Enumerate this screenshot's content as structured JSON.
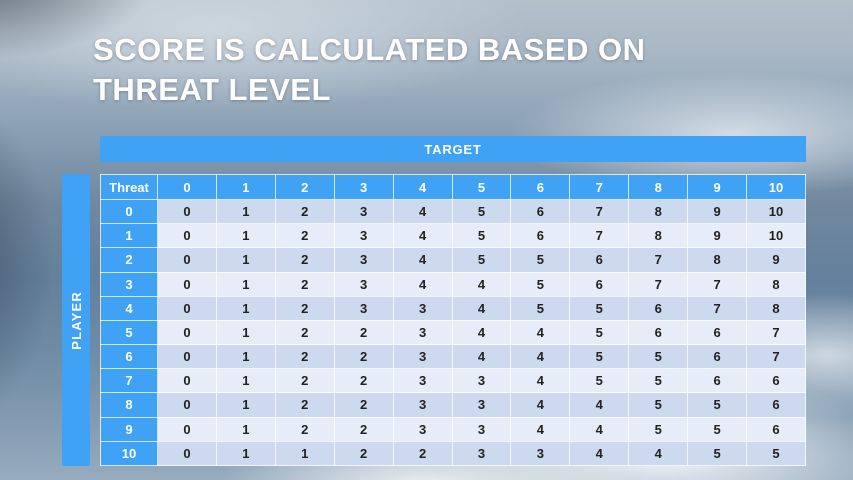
{
  "slide": {
    "title_line1": "SCORE IS CALCULATED BASED ON",
    "title_line2": "THREAT LEVEL"
  },
  "table": {
    "target_label": "TARGET",
    "player_label": "PLAYER",
    "corner_label": "Threat",
    "column_headers": [
      "0",
      "1",
      "2",
      "3",
      "4",
      "5",
      "6",
      "7",
      "8",
      "9",
      "10"
    ],
    "rows": [
      {
        "threat": "0",
        "values": [
          "0",
          "1",
          "2",
          "3",
          "4",
          "5",
          "6",
          "7",
          "8",
          "9",
          "10"
        ]
      },
      {
        "threat": "1",
        "values": [
          "0",
          "1",
          "2",
          "3",
          "4",
          "5",
          "6",
          "7",
          "8",
          "9",
          "10"
        ]
      },
      {
        "threat": "2",
        "values": [
          "0",
          "1",
          "2",
          "3",
          "4",
          "5",
          "5",
          "6",
          "7",
          "8",
          "9"
        ]
      },
      {
        "threat": "3",
        "values": [
          "0",
          "1",
          "2",
          "3",
          "4",
          "4",
          "5",
          "6",
          "7",
          "7",
          "8"
        ]
      },
      {
        "threat": "4",
        "values": [
          "0",
          "1",
          "2",
          "3",
          "3",
          "4",
          "5",
          "5",
          "6",
          "7",
          "8"
        ]
      },
      {
        "threat": "5",
        "values": [
          "0",
          "1",
          "2",
          "2",
          "3",
          "4",
          "4",
          "5",
          "6",
          "6",
          "7"
        ]
      },
      {
        "threat": "6",
        "values": [
          "0",
          "1",
          "2",
          "2",
          "3",
          "4",
          "4",
          "5",
          "5",
          "6",
          "7"
        ]
      },
      {
        "threat": "7",
        "values": [
          "0",
          "1",
          "2",
          "2",
          "3",
          "3",
          "4",
          "5",
          "5",
          "6",
          "6"
        ]
      },
      {
        "threat": "8",
        "values": [
          "0",
          "1",
          "2",
          "2",
          "3",
          "3",
          "4",
          "4",
          "5",
          "5",
          "6"
        ]
      },
      {
        "threat": "9",
        "values": [
          "0",
          "1",
          "2",
          "2",
          "3",
          "3",
          "4",
          "4",
          "5",
          "5",
          "6"
        ]
      },
      {
        "threat": "10",
        "values": [
          "0",
          "1",
          "1",
          "2",
          "2",
          "3",
          "3",
          "4",
          "4",
          "5",
          "5"
        ]
      }
    ]
  },
  "colors": {
    "accent_blue": "#3fa2f4",
    "band_dark": "#ccd9ef",
    "band_light": "#e7edf8",
    "title_text": "#ffffff",
    "cell_text": "#222222"
  }
}
